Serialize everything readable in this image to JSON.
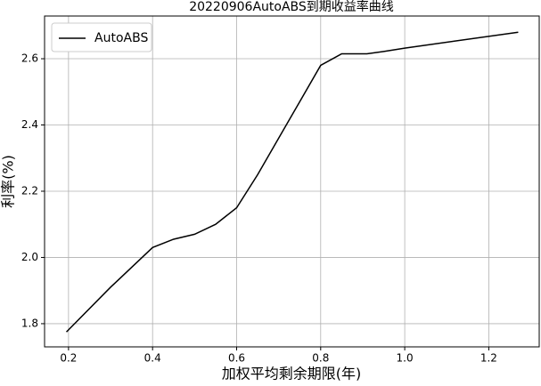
{
  "chart_data": {
    "type": "line",
    "title": "20220906AutoABS到期收益率曲线",
    "x_label": "加权平均剩余期限(年)",
    "y_label": "利率(%)",
    "x": [
      0.195,
      0.3,
      0.4,
      0.45,
      0.5,
      0.55,
      0.6,
      0.65,
      0.7,
      0.75,
      0.8,
      0.85,
      0.91,
      0.95,
      1.0,
      1.27
    ],
    "series": [
      {
        "name": "AutoABS",
        "color": "#000000",
        "values": [
          1.775,
          1.91,
          2.03,
          2.055,
          2.07,
          2.1,
          2.15,
          2.25,
          2.36,
          2.47,
          2.58,
          2.615,
          2.615,
          2.622,
          2.632,
          2.68
        ]
      }
    ],
    "xlim": [
      0.143,
      1.32
    ],
    "xticks": [
      0.2,
      0.4,
      0.6,
      0.8,
      {
        "value": 1.0,
        "label": "1.0"
      },
      1.2
    ],
    "ylim": [
      1.73,
      2.729
    ],
    "yticks": [
      1.8,
      {
        "value": 2.0,
        "label": "2.0"
      },
      2.2,
      2.4,
      2.6
    ],
    "grid": true,
    "legend": "upper left"
  }
}
